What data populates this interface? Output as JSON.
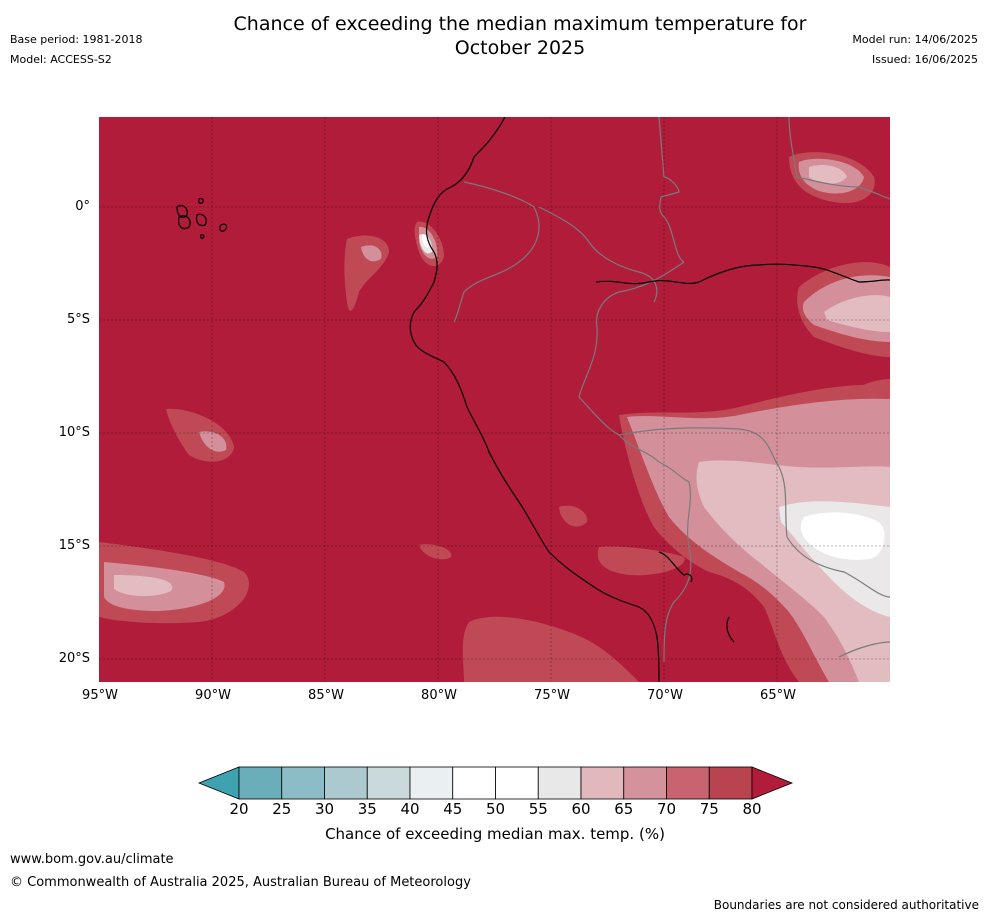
{
  "title_line1": "Chance of exceeding the median maximum temperature for",
  "title_line2": "October 2025",
  "base_period": "Base period: 1981-2018",
  "model": "Model: ACCESS-S2",
  "model_run": "Model run: 14/06/2025",
  "issued": "Issued: 16/06/2025",
  "lat_labels": [
    "0°",
    "5°S",
    "10°S",
    "15°S",
    "20°S"
  ],
  "lon_labels": [
    "95°W",
    "90°W",
    "85°W",
    "80°W",
    "75°W",
    "70°W",
    "65°W"
  ],
  "colorbar": {
    "label": "Chance of exceeding median max. temp. (%)",
    "ticks": [
      "20",
      "25",
      "30",
      "35",
      "40",
      "45",
      "50",
      "55",
      "60",
      "65",
      "70",
      "75",
      "80"
    ],
    "colors": [
      "#3fa2b0",
      "#6aaeba",
      "#8cbcc6",
      "#abc9ce",
      "#cad9db",
      "#eaeff1",
      "#ffffff",
      "#ffffff",
      "#e8e8e8",
      "#e1b9bd",
      "#d4939c",
      "#c8646f",
      "#b9434f",
      "#b01c3a"
    ]
  },
  "map": {
    "base_color": "#b01c3a",
    "contour_colors": {
      "c75": "#bf4a56",
      "c70": "#d3909a",
      "c65": "#e2bcc0",
      "c60": "#eae8e8",
      "c55": "#ffffff"
    },
    "coastline_color": "#000000",
    "border_color": "#7a7a7a"
  },
  "footer_url": "www.bom.gov.au/climate",
  "footer_copyright": "© Commonwealth of Australia 2025, Australian Bureau of Meteorology",
  "disclaimer": "Boundaries are not considered authoritative"
}
